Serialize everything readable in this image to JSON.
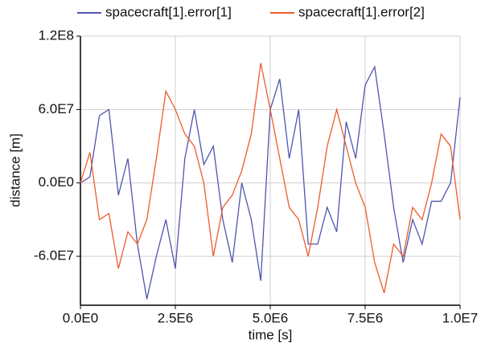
{
  "chart_data": {
    "type": "line",
    "xlabel": "time [s]",
    "ylabel": "distance [m]",
    "x": [
      0,
      250000,
      500000,
      750000,
      1000000,
      1250000,
      1500000,
      1750000,
      2000000,
      2250000,
      2500000,
      2750000,
      3000000,
      3250000,
      3500000,
      3750000,
      4000000,
      4250000,
      4500000,
      4750000,
      5000000,
      5250000,
      5500000,
      5750000,
      6000000,
      6250000,
      6500000,
      6750000,
      7000000,
      7250000,
      7500000,
      7750000,
      8000000,
      8250000,
      8500000,
      8750000,
      9000000,
      9250000,
      9500000,
      9750000,
      10000000
    ],
    "series": [
      {
        "name": "spacecraft[1].error[1]",
        "color": "#4f55ad",
        "values": [
          0,
          5000000,
          55000000,
          60000000,
          -10000000,
          20000000,
          -50000000,
          -95000000,
          -60000000,
          -30000000,
          -70000000,
          20000000,
          60000000,
          15000000,
          30000000,
          -30000000,
          -65000000,
          0,
          -30000000,
          -80000000,
          60000000,
          85000000,
          20000000,
          60000000,
          -50000000,
          -50000000,
          -20000000,
          -40000000,
          50000000,
          20000000,
          80000000,
          95000000,
          40000000,
          -20000000,
          -65000000,
          -30000000,
          -50000000,
          -15000000,
          -15000000,
          0,
          70000000
        ]
      },
      {
        "name": "spacecraft[1].error[2]",
        "color": "#f05a2a",
        "values": [
          0,
          25000000,
          -30000000,
          -25000000,
          -70000000,
          -40000000,
          -50000000,
          -30000000,
          20000000,
          75000000,
          60000000,
          40000000,
          30000000,
          0,
          -60000000,
          -20000000,
          -10000000,
          10000000,
          40000000,
          98000000,
          60000000,
          20000000,
          -20000000,
          -30000000,
          -60000000,
          -20000000,
          30000000,
          60000000,
          30000000,
          0,
          -20000000,
          -65000000,
          -90000000,
          -50000000,
          -60000000,
          -20000000,
          -30000000,
          0,
          40000000,
          30000000,
          -30000000
        ]
      }
    ],
    "xlim": [
      0,
      10000000
    ],
    "xticks": [
      {
        "value": 0,
        "label": "0.0E0"
      },
      {
        "value": 2500000,
        "label": "2.5E6"
      },
      {
        "value": 5000000,
        "label": "5.0E6"
      },
      {
        "value": 7500000,
        "label": "7.5E6"
      },
      {
        "value": 10000000,
        "label": "1.0E7"
      }
    ],
    "ylim": [
      -100000000,
      120000000
    ],
    "yticks": [
      {
        "value": -60000000,
        "label": "-6.0E7"
      },
      {
        "value": 0,
        "label": "0.0E0"
      },
      {
        "value": 60000000,
        "label": "6.0E7"
      },
      {
        "value": 120000000,
        "label": "1.2E8"
      }
    ],
    "grid": true
  }
}
